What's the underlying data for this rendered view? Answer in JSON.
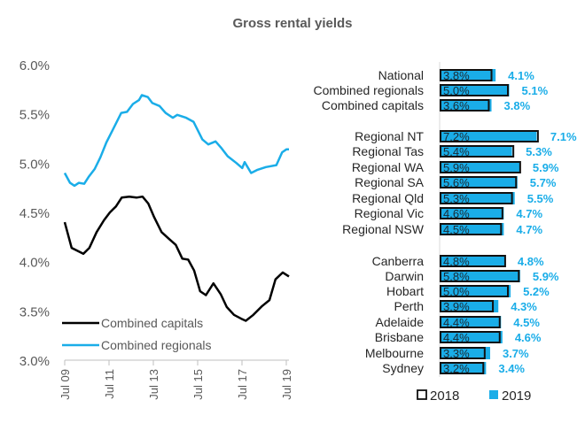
{
  "title": "Gross rental yields",
  "colors": {
    "regionals": "#1AADE8",
    "capitals": "#000000",
    "text": "#595959",
    "axis": "#BFBFBF",
    "bar2019": "#1AADE8"
  },
  "chart_data": [
    {
      "type": "line",
      "xlabel": "",
      "ylabel": "",
      "x_ticks": [
        0,
        2,
        4,
        6,
        8,
        10
      ],
      "x_tick_labels": [
        "Jul 09",
        "Jul 11",
        "Jul 13",
        "Jul 15",
        "Jul 17",
        "Jul 19"
      ],
      "x_units": "years since Jul 2009",
      "ylim": [
        3.0,
        6.0
      ],
      "y_ticks": [
        3.0,
        3.5,
        4.0,
        4.5,
        5.0,
        5.5,
        6.0
      ],
      "y_tick_labels": [
        "3.0%",
        "3.5%",
        "4.0%",
        "4.5%",
        "5.0%",
        "5.5%",
        "6.0%"
      ],
      "legend_position": "bottom-left",
      "series": [
        {
          "name": "Combined capitals",
          "color": "#000000",
          "x": [
            0,
            0.31,
            0.57,
            0.84,
            1.11,
            1.44,
            1.77,
            2.04,
            2.31,
            2.57,
            2.91,
            3.24,
            3.51,
            3.77,
            4.04,
            4.37,
            4.71,
            5.01,
            5.31,
            5.57,
            5.84,
            6.11,
            6.37,
            6.71,
            7.04,
            7.31,
            7.64,
            7.97,
            8.17,
            8.51,
            8.91,
            9.24,
            9.51,
            9.84,
            10.12
          ],
          "y": [
            4.4,
            4.14,
            4.11,
            4.08,
            4.14,
            4.3,
            4.42,
            4.5,
            4.56,
            4.65,
            4.66,
            4.65,
            4.66,
            4.59,
            4.45,
            4.3,
            4.23,
            4.17,
            4.03,
            4.02,
            3.91,
            3.7,
            3.66,
            3.78,
            3.67,
            3.54,
            3.46,
            3.42,
            3.4,
            3.46,
            3.55,
            3.61,
            3.82,
            3.89,
            3.85
          ]
        },
        {
          "name": "Combined regionals",
          "color": "#1AADE8",
          "x": [
            0,
            0.24,
            0.44,
            0.64,
            0.88,
            1.08,
            1.35,
            1.61,
            1.88,
            2.15,
            2.55,
            2.81,
            3.08,
            3.35,
            3.48,
            3.75,
            3.95,
            4.28,
            4.55,
            4.88,
            5.08,
            5.48,
            5.81,
            6.21,
            6.48,
            6.81,
            7.08,
            7.35,
            7.75,
            8.01,
            8.12,
            8.41,
            8.68,
            9.08,
            9.55,
            9.81,
            10.01,
            10.12
          ],
          "y": [
            4.9,
            4.8,
            4.77,
            4.8,
            4.79,
            4.86,
            4.94,
            5.06,
            5.21,
            5.33,
            5.51,
            5.52,
            5.6,
            5.64,
            5.69,
            5.67,
            5.61,
            5.58,
            5.51,
            5.46,
            5.49,
            5.46,
            5.42,
            5.24,
            5.19,
            5.22,
            5.15,
            5.07,
            5.0,
            4.95,
            5.01,
            4.9,
            4.93,
            4.96,
            4.98,
            5.11,
            5.14,
            5.14
          ]
        }
      ]
    },
    {
      "type": "bar",
      "orientation": "horizontal",
      "groups": [
        [
          "National",
          "Combined regionals",
          "Combined capitals"
        ],
        [
          "Regional NT",
          "Regional Tas",
          "Regional WA",
          "Regional SA",
          "Regional Qld",
          "Regional Vic",
          "Regional NSW"
        ],
        [
          "Canberra",
          "Darwin",
          "Hobart",
          "Perth",
          "Adelaide",
          "Brisbane",
          "Melbourne",
          "Sydney"
        ]
      ],
      "categories": [
        "National",
        "Combined regionals",
        "Combined capitals",
        "Regional NT",
        "Regional Tas",
        "Regional WA",
        "Regional SA",
        "Regional Qld",
        "Regional Vic",
        "Regional NSW",
        "Canberra",
        "Darwin",
        "Hobart",
        "Perth",
        "Adelaide",
        "Brisbane",
        "Melbourne",
        "Sydney"
      ],
      "series": [
        {
          "name": "2018",
          "style": "outline",
          "values": [
            3.8,
            5.0,
            3.6,
            7.2,
            5.4,
            5.9,
            5.6,
            5.3,
            4.6,
            4.5,
            4.8,
            5.8,
            5.0,
            3.9,
            4.4,
            4.4,
            3.3,
            3.2
          ],
          "labels": [
            "3.8%",
            "5.0%",
            "3.6%",
            "7.2%",
            "5.4%",
            "5.9%",
            "5.6%",
            "5.3%",
            "4.6%",
            "4.5%",
            "4.8%",
            "5.8%",
            "5.0%",
            "3.9%",
            "4.4%",
            "4.4%",
            "3.3%",
            "3.2%"
          ]
        },
        {
          "name": "2019",
          "style": "filled",
          "values": [
            4.1,
            5.1,
            3.8,
            7.1,
            5.3,
            5.9,
            5.7,
            5.5,
            4.7,
            4.7,
            4.8,
            5.9,
            5.2,
            4.3,
            4.5,
            4.6,
            3.7,
            3.4
          ],
          "labels": [
            "4.1%",
            "5.1%",
            "3.8%",
            "7.1%",
            "5.3%",
            "5.9%",
            "5.7%",
            "5.5%",
            "4.7%",
            "4.7%",
            "4.8%",
            "5.9%",
            "5.2%",
            "4.3%",
            "4.5%",
            "4.6%",
            "3.7%",
            "3.4%"
          ]
        }
      ],
      "legend_position": "bottom"
    }
  ]
}
